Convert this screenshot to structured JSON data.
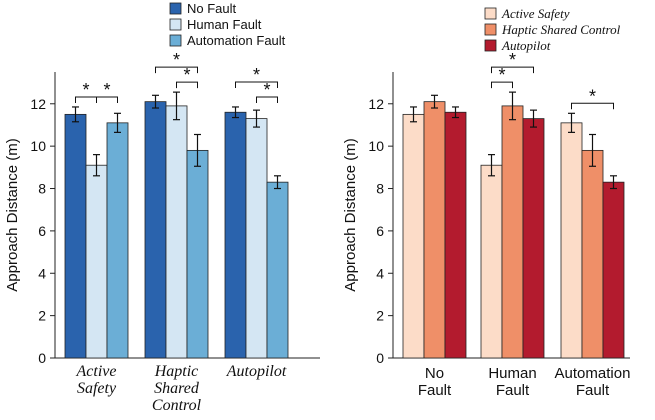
{
  "chart_data": [
    {
      "type": "bar",
      "ylabel": "Approach Distance (m)",
      "ylim": [
        0,
        13.5
      ],
      "yticks": [
        "0",
        "2",
        "4",
        "6",
        "8",
        "10",
        "12"
      ],
      "legend_placement": "top",
      "legend_italic": false,
      "category_italic": true,
      "categories": [
        [
          "Active",
          "Safety"
        ],
        [
          "Haptic",
          "Shared",
          "Control"
        ],
        [
          "Autopilot"
        ]
      ],
      "series": [
        {
          "name": "No Fault",
          "color": "#2a63ad",
          "values": [
            11.5,
            12.1,
            11.6
          ],
          "err": [
            0.35,
            0.3,
            0.25
          ]
        },
        {
          "name": "Human Fault",
          "color": "#d4e6f3",
          "values": [
            9.1,
            11.9,
            11.3
          ],
          "err": [
            0.5,
            0.65,
            0.4
          ]
        },
        {
          "name": "Automation Fault",
          "color": "#6baed6",
          "values": [
            11.1,
            9.8,
            8.3
          ],
          "err": [
            0.45,
            0.75,
            0.3
          ]
        }
      ],
      "significance": [
        {
          "group": 0,
          "bars": [
            0,
            1
          ],
          "label": "*",
          "level": 0
        },
        {
          "group": 0,
          "bars": [
            1,
            2
          ],
          "label": "*",
          "level": 0
        },
        {
          "group": 1,
          "bars": [
            0,
            2
          ],
          "label": "*",
          "level": 1
        },
        {
          "group": 1,
          "bars": [
            1,
            2
          ],
          "label": "*",
          "level": 0
        },
        {
          "group": 2,
          "bars": [
            0,
            2
          ],
          "label": "*",
          "level": 1
        },
        {
          "group": 2,
          "bars": [
            1,
            2
          ],
          "label": "*",
          "level": 0
        }
      ]
    },
    {
      "type": "bar",
      "ylabel": "Approach Distance (m)",
      "ylim": [
        0,
        13.5
      ],
      "yticks": [
        "0",
        "2",
        "4",
        "6",
        "8",
        "10",
        "12"
      ],
      "legend_placement": "top",
      "legend_italic": true,
      "category_italic": false,
      "categories": [
        [
          "No",
          "Fault"
        ],
        [
          "Human",
          "Fault"
        ],
        [
          "Automation",
          "Fault"
        ]
      ],
      "series": [
        {
          "name": "Active Safety",
          "color": "#fcdcc8",
          "values": [
            11.5,
            9.1,
            11.1
          ],
          "err": [
            0.35,
            0.5,
            0.45
          ]
        },
        {
          "name": "Haptic Shared Control",
          "color": "#ef8f68",
          "values": [
            12.1,
            11.9,
            9.8
          ],
          "err": [
            0.3,
            0.65,
            0.75
          ]
        },
        {
          "name": "Autopilot",
          "color": "#b31b2e",
          "values": [
            11.6,
            11.3,
            8.3
          ],
          "err": [
            0.25,
            0.4,
            0.3
          ]
        }
      ],
      "significance": [
        {
          "group": 1,
          "bars": [
            0,
            1
          ],
          "label": "*",
          "level": 0
        },
        {
          "group": 1,
          "bars": [
            0,
            2
          ],
          "label": "*",
          "level": 1
        },
        {
          "group": 2,
          "bars": [
            0,
            2
          ],
          "label": "*",
          "level": 0
        }
      ]
    }
  ]
}
